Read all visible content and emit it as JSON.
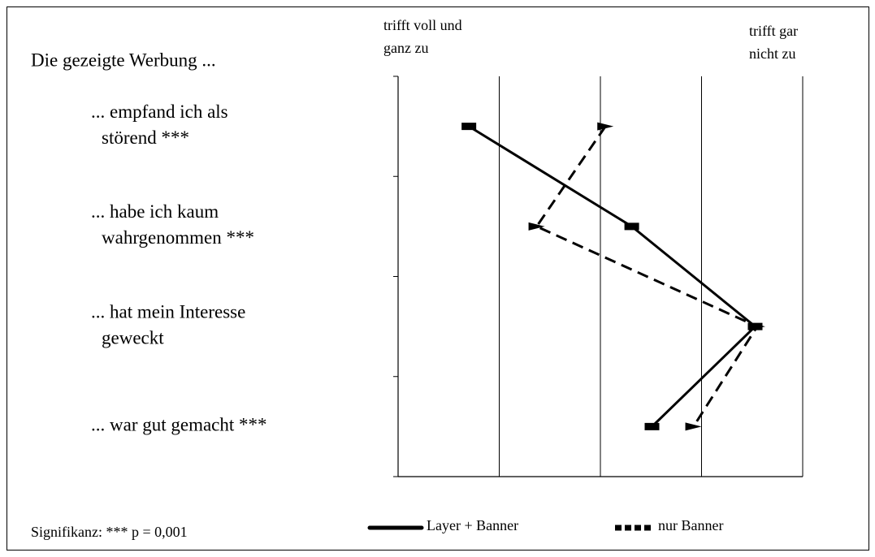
{
  "chart_data": {
    "type": "line",
    "title": "Die gezeigte Werbung ...",
    "x_left_label": [
      "trifft voll und",
      "ganz zu"
    ],
    "x_right_label": [
      "trifft gar",
      "nicht zu"
    ],
    "categories": [
      [
        "... empfand ich als",
        "störend ***"
      ],
      [
        "... habe ich kaum",
        "wahrgenommen ***"
      ],
      [
        "... hat mein Interesse",
        "geweckt"
      ],
      [
        "... war gut gemacht ***"
      ]
    ],
    "series": [
      {
        "name": "Layer + Banner",
        "color": "#000000",
        "values": [
          1.7,
          3.31,
          4.53,
          3.51
        ]
      },
      {
        "name": "nur Banner",
        "color": "#000000",
        "values": [
          3.05,
          2.37,
          4.55,
          3.92
        ]
      }
    ],
    "xlim": [
      1,
      5
    ],
    "xticks": [
      1,
      2,
      3,
      4,
      5
    ],
    "grid": true,
    "note": "Signifikanz: *** p = 0,001"
  }
}
